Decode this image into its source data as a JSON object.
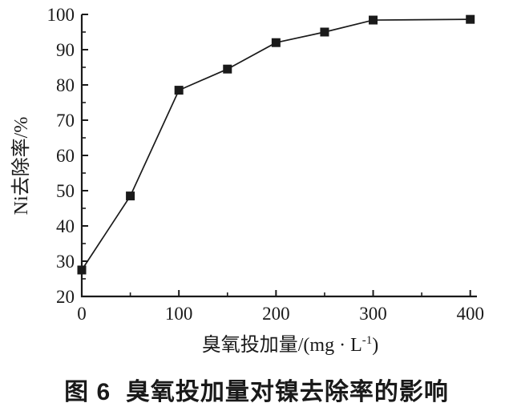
{
  "figure": {
    "caption": "图 6  臭氧投加量对镍去除率的影响"
  },
  "chart_data": {
    "type": "line",
    "title": "",
    "xlabel": "臭氧投加量/(mg·L⁻¹)",
    "xlabel_parts": {
      "main": "臭氧投加量/(mg · L",
      "sup": "-1",
      "close": ")"
    },
    "ylabel": "Ni去除率/%",
    "x": [
      0,
      50,
      100,
      150,
      200,
      250,
      300,
      400
    ],
    "y": [
      27.5,
      48.5,
      78.5,
      84.5,
      92,
      95,
      98.4,
      98.6
    ],
    "xlim": [
      0,
      400
    ],
    "ylim": [
      20,
      100
    ],
    "x_major_ticks": [
      0,
      100,
      200,
      300,
      400
    ],
    "x_minor_ticks": [
      50,
      150,
      250,
      350
    ],
    "y_major_ticks": [
      20,
      30,
      40,
      50,
      60,
      70,
      80,
      90,
      100
    ],
    "y_minor_ticks": [
      25,
      35,
      45,
      55,
      65,
      75,
      85,
      95
    ],
    "grid": false,
    "legend": null,
    "marker": "square",
    "line_color": "#1a1a1a",
    "marker_color": "#1a1a1a",
    "background_color": "#ffffff"
  }
}
